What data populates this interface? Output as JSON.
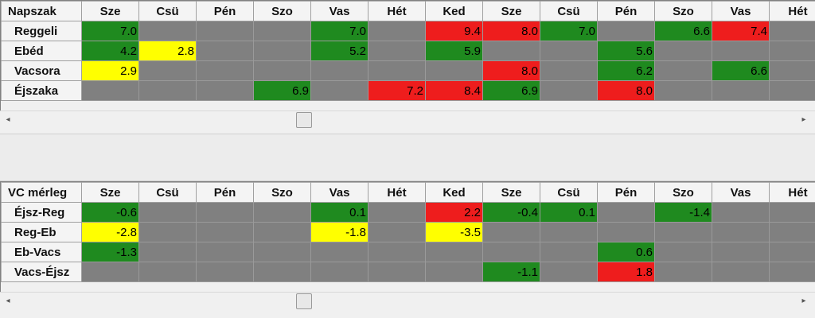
{
  "colors": {
    "gray": "#808080",
    "green": "#1f8a1f",
    "red": "#ee1d1d",
    "yellow": "#ffff00"
  },
  "top_grid": {
    "corner": "Napszak",
    "columns": [
      "Sze",
      "Csü",
      "Pén",
      "Szo",
      "Vas",
      "Hét",
      "Ked",
      "Sze",
      "Csü",
      "Pén",
      "Szo",
      "Vas",
      "Hét"
    ],
    "rows": [
      {
        "label": "Reggeli",
        "cells": [
          {
            "v": "7.0",
            "c": "green"
          },
          {
            "v": "",
            "c": "gray"
          },
          {
            "v": "",
            "c": "gray"
          },
          {
            "v": "",
            "c": "gray"
          },
          {
            "v": "7.0",
            "c": "green"
          },
          {
            "v": "",
            "c": "gray"
          },
          {
            "v": "9.4",
            "c": "red"
          },
          {
            "v": "8.0",
            "c": "red"
          },
          {
            "v": "7.0",
            "c": "green"
          },
          {
            "v": "",
            "c": "gray"
          },
          {
            "v": "6.6",
            "c": "green"
          },
          {
            "v": "7.4",
            "c": "red"
          },
          {
            "v": "",
            "c": "gray"
          }
        ]
      },
      {
        "label": "Ebéd",
        "cells": [
          {
            "v": "4.2",
            "c": "green"
          },
          {
            "v": "2.8",
            "c": "yellow"
          },
          {
            "v": "",
            "c": "gray"
          },
          {
            "v": "",
            "c": "gray"
          },
          {
            "v": "5.2",
            "c": "green"
          },
          {
            "v": "",
            "c": "gray"
          },
          {
            "v": "5.9",
            "c": "green"
          },
          {
            "v": "",
            "c": "gray"
          },
          {
            "v": "",
            "c": "gray"
          },
          {
            "v": "5.6",
            "c": "green"
          },
          {
            "v": "",
            "c": "gray"
          },
          {
            "v": "",
            "c": "gray"
          },
          {
            "v": "",
            "c": "gray"
          }
        ]
      },
      {
        "label": "Vacsora",
        "cells": [
          {
            "v": "2.9",
            "c": "yellow"
          },
          {
            "v": "",
            "c": "gray"
          },
          {
            "v": "",
            "c": "gray"
          },
          {
            "v": "",
            "c": "gray"
          },
          {
            "v": "",
            "c": "gray"
          },
          {
            "v": "",
            "c": "gray"
          },
          {
            "v": "",
            "c": "gray"
          },
          {
            "v": "8.0",
            "c": "red"
          },
          {
            "v": "",
            "c": "gray"
          },
          {
            "v": "6.2",
            "c": "green"
          },
          {
            "v": "",
            "c": "gray"
          },
          {
            "v": "6.6",
            "c": "green"
          },
          {
            "v": "",
            "c": "gray"
          }
        ]
      },
      {
        "label": "Éjszaka",
        "cells": [
          {
            "v": "",
            "c": "gray"
          },
          {
            "v": "",
            "c": "gray"
          },
          {
            "v": "",
            "c": "gray"
          },
          {
            "v": "6.9",
            "c": "green"
          },
          {
            "v": "",
            "c": "gray"
          },
          {
            "v": "7.2",
            "c": "red"
          },
          {
            "v": "8.4",
            "c": "red"
          },
          {
            "v": "6.9",
            "c": "green"
          },
          {
            "v": "",
            "c": "gray"
          },
          {
            "v": "8.0",
            "c": "red"
          },
          {
            "v": "",
            "c": "gray"
          },
          {
            "v": "",
            "c": "gray"
          },
          {
            "v": "",
            "c": "gray"
          }
        ]
      }
    ]
  },
  "bottom_grid": {
    "corner": "VC mérleg",
    "columns": [
      "Sze",
      "Csü",
      "Pén",
      "Szo",
      "Vas",
      "Hét",
      "Ked",
      "Sze",
      "Csü",
      "Pén",
      "Szo",
      "Vas",
      "Hét"
    ],
    "rows": [
      {
        "label": "Éjsz-Reg",
        "cells": [
          {
            "v": "-0.6",
            "c": "green"
          },
          {
            "v": "",
            "c": "gray"
          },
          {
            "v": "",
            "c": "gray"
          },
          {
            "v": "",
            "c": "gray"
          },
          {
            "v": "0.1",
            "c": "green"
          },
          {
            "v": "",
            "c": "gray"
          },
          {
            "v": "2.2",
            "c": "red"
          },
          {
            "v": "-0.4",
            "c": "green"
          },
          {
            "v": "0.1",
            "c": "green"
          },
          {
            "v": "",
            "c": "gray"
          },
          {
            "v": "-1.4",
            "c": "green"
          },
          {
            "v": "",
            "c": "gray"
          },
          {
            "v": "",
            "c": "gray"
          }
        ]
      },
      {
        "label": "Reg-Eb",
        "cells": [
          {
            "v": "-2.8",
            "c": "yellow"
          },
          {
            "v": "",
            "c": "gray"
          },
          {
            "v": "",
            "c": "gray"
          },
          {
            "v": "",
            "c": "gray"
          },
          {
            "v": "-1.8",
            "c": "yellow"
          },
          {
            "v": "",
            "c": "gray"
          },
          {
            "v": "-3.5",
            "c": "yellow"
          },
          {
            "v": "",
            "c": "gray"
          },
          {
            "v": "",
            "c": "gray"
          },
          {
            "v": "",
            "c": "gray"
          },
          {
            "v": "",
            "c": "gray"
          },
          {
            "v": "",
            "c": "gray"
          },
          {
            "v": "",
            "c": "gray"
          }
        ]
      },
      {
        "label": "Eb-Vacs",
        "cells": [
          {
            "v": "-1.3",
            "c": "green"
          },
          {
            "v": "",
            "c": "gray"
          },
          {
            "v": "",
            "c": "gray"
          },
          {
            "v": "",
            "c": "gray"
          },
          {
            "v": "",
            "c": "gray"
          },
          {
            "v": "",
            "c": "gray"
          },
          {
            "v": "",
            "c": "gray"
          },
          {
            "v": "",
            "c": "gray"
          },
          {
            "v": "",
            "c": "gray"
          },
          {
            "v": "0.6",
            "c": "green"
          },
          {
            "v": "",
            "c": "gray"
          },
          {
            "v": "",
            "c": "gray"
          },
          {
            "v": "",
            "c": "gray"
          }
        ]
      },
      {
        "label": "Vacs-Éjsz",
        "cells": [
          {
            "v": "",
            "c": "gray"
          },
          {
            "v": "",
            "c": "gray"
          },
          {
            "v": "",
            "c": "gray"
          },
          {
            "v": "",
            "c": "gray"
          },
          {
            "v": "",
            "c": "gray"
          },
          {
            "v": "",
            "c": "gray"
          },
          {
            "v": "",
            "c": "gray"
          },
          {
            "v": "-1.1",
            "c": "green"
          },
          {
            "v": "",
            "c": "gray"
          },
          {
            "v": "1.8",
            "c": "red"
          },
          {
            "v": "",
            "c": "gray"
          },
          {
            "v": "",
            "c": "gray"
          },
          {
            "v": "",
            "c": "gray"
          }
        ]
      }
    ]
  },
  "scrollbar": {
    "left_icon": "chevron-left-icon",
    "right_icon": "chevron-right-icon",
    "left_glyph": "◂",
    "right_glyph": "▸"
  }
}
